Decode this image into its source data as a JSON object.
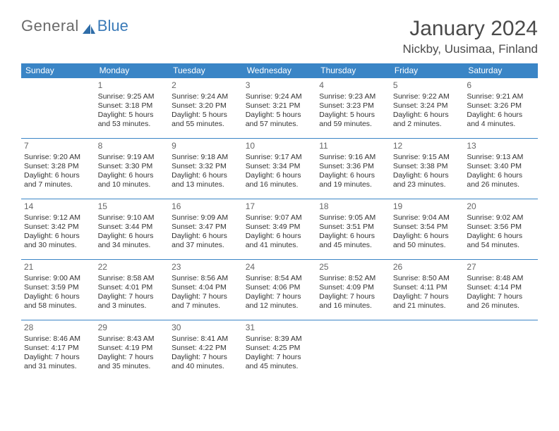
{
  "logo": {
    "part1": "General",
    "part2": "Blue"
  },
  "title": "January 2024",
  "location": "Nickby, Uusimaa, Finland",
  "colors": {
    "header_bg": "#3a85c6",
    "header_fg": "#ffffff",
    "border": "#3a85c6",
    "text": "#333333",
    "daynum": "#666666",
    "logo_gray": "#6a6a6a",
    "logo_blue": "#3a7ab8",
    "bg": "#ffffff"
  },
  "day_names": [
    "Sunday",
    "Monday",
    "Tuesday",
    "Wednesday",
    "Thursday",
    "Friday",
    "Saturday"
  ],
  "weeks": [
    [
      null,
      {
        "n": "1",
        "sr": "Sunrise: 9:25 AM",
        "ss": "Sunset: 3:18 PM",
        "d1": "Daylight: 5 hours",
        "d2": "and 53 minutes."
      },
      {
        "n": "2",
        "sr": "Sunrise: 9:24 AM",
        "ss": "Sunset: 3:20 PM",
        "d1": "Daylight: 5 hours",
        "d2": "and 55 minutes."
      },
      {
        "n": "3",
        "sr": "Sunrise: 9:24 AM",
        "ss": "Sunset: 3:21 PM",
        "d1": "Daylight: 5 hours",
        "d2": "and 57 minutes."
      },
      {
        "n": "4",
        "sr": "Sunrise: 9:23 AM",
        "ss": "Sunset: 3:23 PM",
        "d1": "Daylight: 5 hours",
        "d2": "and 59 minutes."
      },
      {
        "n": "5",
        "sr": "Sunrise: 9:22 AM",
        "ss": "Sunset: 3:24 PM",
        "d1": "Daylight: 6 hours",
        "d2": "and 2 minutes."
      },
      {
        "n": "6",
        "sr": "Sunrise: 9:21 AM",
        "ss": "Sunset: 3:26 PM",
        "d1": "Daylight: 6 hours",
        "d2": "and 4 minutes."
      }
    ],
    [
      {
        "n": "7",
        "sr": "Sunrise: 9:20 AM",
        "ss": "Sunset: 3:28 PM",
        "d1": "Daylight: 6 hours",
        "d2": "and 7 minutes."
      },
      {
        "n": "8",
        "sr": "Sunrise: 9:19 AM",
        "ss": "Sunset: 3:30 PM",
        "d1": "Daylight: 6 hours",
        "d2": "and 10 minutes."
      },
      {
        "n": "9",
        "sr": "Sunrise: 9:18 AM",
        "ss": "Sunset: 3:32 PM",
        "d1": "Daylight: 6 hours",
        "d2": "and 13 minutes."
      },
      {
        "n": "10",
        "sr": "Sunrise: 9:17 AM",
        "ss": "Sunset: 3:34 PM",
        "d1": "Daylight: 6 hours",
        "d2": "and 16 minutes."
      },
      {
        "n": "11",
        "sr": "Sunrise: 9:16 AM",
        "ss": "Sunset: 3:36 PM",
        "d1": "Daylight: 6 hours",
        "d2": "and 19 minutes."
      },
      {
        "n": "12",
        "sr": "Sunrise: 9:15 AM",
        "ss": "Sunset: 3:38 PM",
        "d1": "Daylight: 6 hours",
        "d2": "and 23 minutes."
      },
      {
        "n": "13",
        "sr": "Sunrise: 9:13 AM",
        "ss": "Sunset: 3:40 PM",
        "d1": "Daylight: 6 hours",
        "d2": "and 26 minutes."
      }
    ],
    [
      {
        "n": "14",
        "sr": "Sunrise: 9:12 AM",
        "ss": "Sunset: 3:42 PM",
        "d1": "Daylight: 6 hours",
        "d2": "and 30 minutes."
      },
      {
        "n": "15",
        "sr": "Sunrise: 9:10 AM",
        "ss": "Sunset: 3:44 PM",
        "d1": "Daylight: 6 hours",
        "d2": "and 34 minutes."
      },
      {
        "n": "16",
        "sr": "Sunrise: 9:09 AM",
        "ss": "Sunset: 3:47 PM",
        "d1": "Daylight: 6 hours",
        "d2": "and 37 minutes."
      },
      {
        "n": "17",
        "sr": "Sunrise: 9:07 AM",
        "ss": "Sunset: 3:49 PM",
        "d1": "Daylight: 6 hours",
        "d2": "and 41 minutes."
      },
      {
        "n": "18",
        "sr": "Sunrise: 9:05 AM",
        "ss": "Sunset: 3:51 PM",
        "d1": "Daylight: 6 hours",
        "d2": "and 45 minutes."
      },
      {
        "n": "19",
        "sr": "Sunrise: 9:04 AM",
        "ss": "Sunset: 3:54 PM",
        "d1": "Daylight: 6 hours",
        "d2": "and 50 minutes."
      },
      {
        "n": "20",
        "sr": "Sunrise: 9:02 AM",
        "ss": "Sunset: 3:56 PM",
        "d1": "Daylight: 6 hours",
        "d2": "and 54 minutes."
      }
    ],
    [
      {
        "n": "21",
        "sr": "Sunrise: 9:00 AM",
        "ss": "Sunset: 3:59 PM",
        "d1": "Daylight: 6 hours",
        "d2": "and 58 minutes."
      },
      {
        "n": "22",
        "sr": "Sunrise: 8:58 AM",
        "ss": "Sunset: 4:01 PM",
        "d1": "Daylight: 7 hours",
        "d2": "and 3 minutes."
      },
      {
        "n": "23",
        "sr": "Sunrise: 8:56 AM",
        "ss": "Sunset: 4:04 PM",
        "d1": "Daylight: 7 hours",
        "d2": "and 7 minutes."
      },
      {
        "n": "24",
        "sr": "Sunrise: 8:54 AM",
        "ss": "Sunset: 4:06 PM",
        "d1": "Daylight: 7 hours",
        "d2": "and 12 minutes."
      },
      {
        "n": "25",
        "sr": "Sunrise: 8:52 AM",
        "ss": "Sunset: 4:09 PM",
        "d1": "Daylight: 7 hours",
        "d2": "and 16 minutes."
      },
      {
        "n": "26",
        "sr": "Sunrise: 8:50 AM",
        "ss": "Sunset: 4:11 PM",
        "d1": "Daylight: 7 hours",
        "d2": "and 21 minutes."
      },
      {
        "n": "27",
        "sr": "Sunrise: 8:48 AM",
        "ss": "Sunset: 4:14 PM",
        "d1": "Daylight: 7 hours",
        "d2": "and 26 minutes."
      }
    ],
    [
      {
        "n": "28",
        "sr": "Sunrise: 8:46 AM",
        "ss": "Sunset: 4:17 PM",
        "d1": "Daylight: 7 hours",
        "d2": "and 31 minutes."
      },
      {
        "n": "29",
        "sr": "Sunrise: 8:43 AM",
        "ss": "Sunset: 4:19 PM",
        "d1": "Daylight: 7 hours",
        "d2": "and 35 minutes."
      },
      {
        "n": "30",
        "sr": "Sunrise: 8:41 AM",
        "ss": "Sunset: 4:22 PM",
        "d1": "Daylight: 7 hours",
        "d2": "and 40 minutes."
      },
      {
        "n": "31",
        "sr": "Sunrise: 8:39 AM",
        "ss": "Sunset: 4:25 PM",
        "d1": "Daylight: 7 hours",
        "d2": "and 45 minutes."
      },
      null,
      null,
      null
    ]
  ]
}
